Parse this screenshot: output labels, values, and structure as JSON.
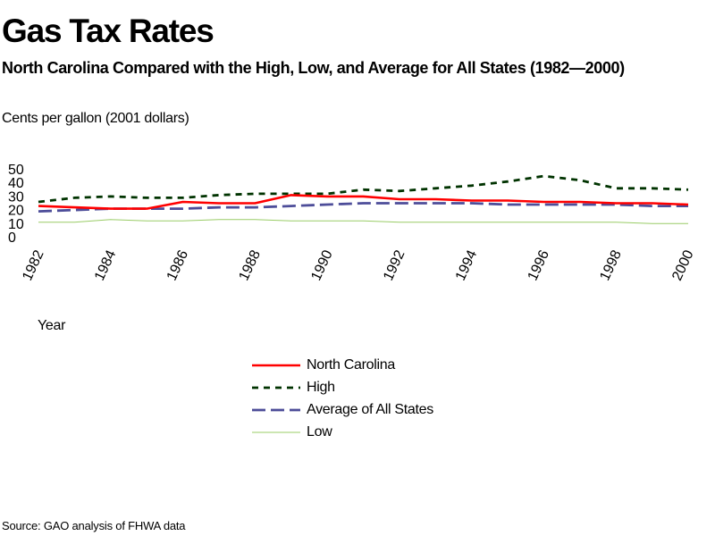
{
  "title": "Gas Tax Rates",
  "subtitle": "North Carolina Compared with the High, Low, and Average for All States (1982—2000)",
  "source": "Source: GAO analysis of FHWA data",
  "chart_data": {
    "type": "line",
    "ylabel": "Cents per gallon (2001 dollars)",
    "xlabel": "Year",
    "ylim": [
      0,
      50
    ],
    "yticks": [
      0,
      10,
      20,
      30,
      40,
      50
    ],
    "xticks": [
      1982,
      1984,
      1986,
      1988,
      1990,
      1992,
      1994,
      1996,
      1998,
      2000
    ],
    "x": [
      1982,
      1983,
      1984,
      1985,
      1986,
      1987,
      1988,
      1989,
      1990,
      1991,
      1992,
      1993,
      1994,
      1995,
      1996,
      1997,
      1998,
      1999,
      2000
    ],
    "grid": false,
    "legend_position": "bottom-center",
    "series": [
      {
        "name": "North Carolina",
        "color": "#ff0000",
        "style": "solid",
        "values": [
          22,
          21,
          20,
          20,
          25,
          24,
          24,
          30,
          29,
          29,
          27,
          27,
          26,
          26,
          25,
          25,
          24,
          24,
          23
        ]
      },
      {
        "name": "High",
        "color": "#003300",
        "style": "dotted",
        "values": [
          25,
          28,
          29,
          28,
          28,
          30,
          31,
          31,
          31,
          34,
          33,
          35,
          37,
          40,
          44,
          41,
          35,
          35,
          34
        ]
      },
      {
        "name": "Average of All States",
        "color": "#4d4d99",
        "style": "dashed",
        "values": [
          18,
          19,
          20,
          20,
          20,
          21,
          21,
          22,
          23,
          24,
          24,
          24,
          24,
          23,
          23,
          23,
          23,
          22,
          22
        ]
      },
      {
        "name": "Low",
        "color": "#99cc66",
        "style": "solid-thin",
        "values": [
          10,
          10,
          12,
          11,
          11,
          12,
          12,
          11,
          11,
          11,
          10,
          10,
          10,
          10,
          10,
          10,
          10,
          9,
          9
        ]
      }
    ]
  }
}
